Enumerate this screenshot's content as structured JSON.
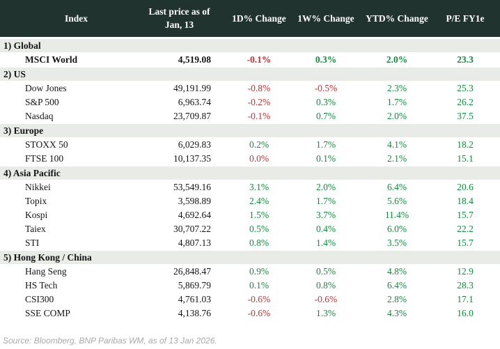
{
  "colors": {
    "header_bg": "#20332e",
    "section_bg": "#e9ebe6",
    "positive": "#0a9038",
    "negative": "#d22b2b",
    "header_text": "#ffffff",
    "body_text": "#141414",
    "source_text": "#a9a9a9"
  },
  "source": "Source: Bloomberg, BNP Paribas WM, as of 13 Jan 2026.",
  "chart_data": {
    "type": "table",
    "columns": [
      {
        "label": "Index"
      },
      {
        "label": "Last price as of\nJan, 13"
      },
      {
        "label": "1D% Change"
      },
      {
        "label": "1W% Change"
      },
      {
        "label": "YTD% Change"
      },
      {
        "label": "P/E FY1e"
      }
    ],
    "sections": [
      {
        "label": "1) Global",
        "rows": [
          {
            "name": "MSCI World",
            "bold": true,
            "price": "4,519.08",
            "d1": "-0.1%",
            "d1c": "neg",
            "w1": "0.3%",
            "w1c": "pos",
            "ytd": "2.0%",
            "ytdc": "pos",
            "pe": "23.3",
            "pec": "pos"
          }
        ]
      },
      {
        "label": "2) US",
        "rows": [
          {
            "name": "Dow Jones",
            "bold": false,
            "price": "49,191.99",
            "d1": "-0.8%",
            "d1c": "neg",
            "w1": "-0.5%",
            "w1c": "neg",
            "ytd": "2.3%",
            "ytdc": "pos",
            "pe": "25.3",
            "pec": "pos"
          },
          {
            "name": "S&P 500",
            "bold": false,
            "price": "6,963.74",
            "d1": "-0.2%",
            "d1c": "neg",
            "w1": "0.3%",
            "w1c": "pos",
            "ytd": "1.7%",
            "ytdc": "pos",
            "pe": "26.2",
            "pec": "pos"
          },
          {
            "name": "Nasdaq",
            "bold": false,
            "price": "23,709.87",
            "d1": "-0.1%",
            "d1c": "neg",
            "w1": "0.7%",
            "w1c": "pos",
            "ytd": "2.0%",
            "ytdc": "pos",
            "pe": "37.5",
            "pec": "pos"
          }
        ]
      },
      {
        "label": "3) Europe",
        "rows": [
          {
            "name": "STOXX 50",
            "bold": false,
            "price": "6,029.83",
            "d1": "0.2%",
            "d1c": "pos",
            "w1": "1.7%",
            "w1c": "pos",
            "ytd": "4.1%",
            "ytdc": "pos",
            "pe": "18.2",
            "pec": "pos"
          },
          {
            "name": "FTSE 100",
            "bold": false,
            "price": "10,137.35",
            "d1": "0.0%",
            "d1c": "neg",
            "w1": "0.1%",
            "w1c": "pos",
            "ytd": "2.1%",
            "ytdc": "pos",
            "pe": "15.1",
            "pec": "pos"
          }
        ]
      },
      {
        "label": "4) Asia Pacific",
        "rows": [
          {
            "name": "Nikkei",
            "bold": false,
            "price": "53,549.16",
            "d1": "3.1%",
            "d1c": "pos",
            "w1": "2.0%",
            "w1c": "pos",
            "ytd": "6.4%",
            "ytdc": "pos",
            "pe": "20.6",
            "pec": "pos"
          },
          {
            "name": "Topix",
            "bold": false,
            "price": "3,598.89",
            "d1": "2.4%",
            "d1c": "pos",
            "w1": "1.7%",
            "w1c": "pos",
            "ytd": "5.6%",
            "ytdc": "pos",
            "pe": "18.4",
            "pec": "pos"
          },
          {
            "name": "Kospi",
            "bold": false,
            "price": "4,692.64",
            "d1": "1.5%",
            "d1c": "pos",
            "w1": "3.7%",
            "w1c": "pos",
            "ytd": "11.4%",
            "ytdc": "pos",
            "pe": "15.7",
            "pec": "pos"
          },
          {
            "name": "Taiex",
            "bold": false,
            "price": "30,707.22",
            "d1": "0.5%",
            "d1c": "pos",
            "w1": "0.4%",
            "w1c": "pos",
            "ytd": "6.0%",
            "ytdc": "pos",
            "pe": "22.2",
            "pec": "pos"
          },
          {
            "name": "STI",
            "bold": false,
            "price": "4,807.13",
            "d1": "0.8%",
            "d1c": "pos",
            "w1": "1.4%",
            "w1c": "pos",
            "ytd": "3.5%",
            "ytdc": "pos",
            "pe": "15.7",
            "pec": "pos"
          }
        ]
      },
      {
        "label": "5) Hong Kong / China",
        "rows": [
          {
            "name": "Hang Seng",
            "bold": false,
            "price": "26,848.47",
            "d1": "0.9%",
            "d1c": "pos",
            "w1": "0.5%",
            "w1c": "pos",
            "ytd": "4.8%",
            "ytdc": "pos",
            "pe": "12.9",
            "pec": "pos"
          },
          {
            "name": "HS Tech",
            "bold": false,
            "price": "5,869.79",
            "d1": "0.1%",
            "d1c": "pos",
            "w1": "0.8%",
            "w1c": "pos",
            "ytd": "6.4%",
            "ytdc": "pos",
            "pe": "28.3",
            "pec": "pos"
          },
          {
            "name": "CSI300",
            "bold": false,
            "price": "4,761.03",
            "d1": "-0.6%",
            "d1c": "neg",
            "w1": "-0.6%",
            "w1c": "neg",
            "ytd": "2.8%",
            "ytdc": "pos",
            "pe": "17.1",
            "pec": "pos"
          },
          {
            "name": "SSE COMP",
            "bold": false,
            "price": "4,138.76",
            "d1": "-0.6%",
            "d1c": "neg",
            "w1": "1.3%",
            "w1c": "pos",
            "ytd": "4.3%",
            "ytdc": "pos",
            "pe": "16.0",
            "pec": "pos"
          }
        ]
      }
    ]
  }
}
